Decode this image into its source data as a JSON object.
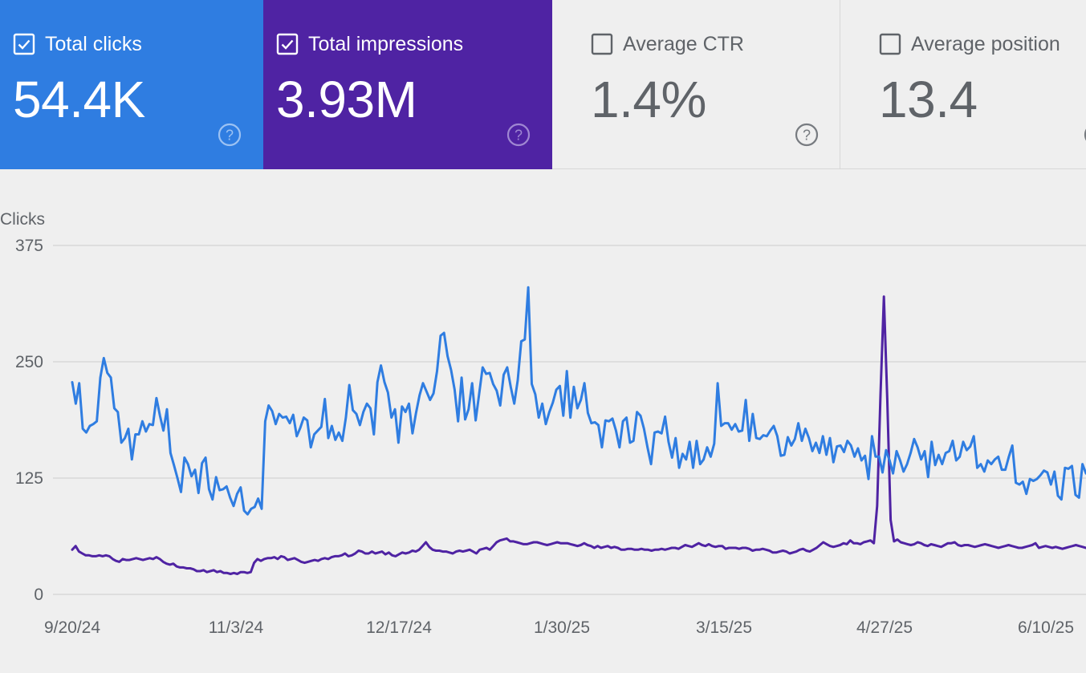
{
  "cards": [
    {
      "label": "Total clicks",
      "value": "54.4K",
      "checked": true,
      "color": "#2f7de1"
    },
    {
      "label": "Total impressions",
      "value": "3.93M",
      "checked": true,
      "color": "#4f23a3"
    },
    {
      "label": "Average CTR",
      "value": "1.4%",
      "checked": false,
      "color": "#efefef"
    },
    {
      "label": "Average position",
      "value": "13.4",
      "checked": false,
      "color": "#efefef"
    }
  ],
  "chart_data": {
    "type": "line",
    "ylabel": "Clicks",
    "ylim": [
      0,
      375
    ],
    "yticks": [
      "375",
      "250",
      "125",
      "0"
    ],
    "ytick_values": [
      375,
      250,
      125,
      0
    ],
    "xlabels": [
      "9/20/24",
      "11/3/24",
      "12/17/24",
      "1/30/25",
      "3/15/25",
      "4/27/25",
      "6/10/25"
    ],
    "x_start": "9/20/24",
    "x_end": "6/16/25",
    "grid": true,
    "series": [
      {
        "name": "Clicks",
        "color": "#2f7de1",
        "values": [
          228,
          205,
          227,
          178,
          174,
          181,
          183,
          186,
          233,
          254,
          238,
          233,
          200,
          196,
          163,
          168,
          178,
          145,
          172,
          172,
          186,
          175,
          183,
          182,
          211,
          192,
          176,
          199,
          152,
          139,
          125,
          110,
          147,
          140,
          127,
          134,
          109,
          141,
          147,
          113,
          102,
          126,
          112,
          113,
          116,
          104,
          95,
          108,
          115,
          90,
          86,
          92,
          94,
          103,
          92,
          186,
          203,
          197,
          183,
          194,
          190,
          191,
          184,
          193,
          170,
          179,
          190,
          187,
          158,
          172,
          176,
          180,
          210,
          168,
          181,
          166,
          174,
          165,
          190,
          225,
          198,
          194,
          182,
          196,
          205,
          200,
          172,
          228,
          246,
          228,
          217,
          190,
          199,
          163,
          202,
          196,
          205,
          173,
          195,
          214,
          227,
          218,
          209,
          216,
          240,
          278,
          281,
          256,
          241,
          220,
          186,
          233,
          188,
          199,
          227,
          187,
          215,
          244,
          237,
          238,
          226,
          219,
          203,
          236,
          244,
          223,
          205,
          230,
          272,
          274,
          330,
          226,
          215,
          190,
          205,
          183,
          196,
          206,
          220,
          224,
          192,
          240,
          190,
          223,
          200,
          209,
          227,
          195,
          184,
          185,
          182,
          158,
          187,
          186,
          189,
          176,
          158,
          186,
          190,
          163,
          165,
          196,
          192,
          178,
          158,
          140,
          174,
          175,
          173,
          191,
          164,
          147,
          168,
          136,
          151,
          145,
          164,
          136,
          165,
          140,
          145,
          158,
          148,
          162,
          227,
          181,
          184,
          184,
          177,
          183,
          175,
          176,
          209,
          165,
          194,
          168,
          167,
          171,
          170,
          176,
          181,
          170,
          149,
          150,
          169,
          160,
          167,
          184,
          165,
          178,
          168,
          154,
          163,
          152,
          170,
          150,
          168,
          142,
          159,
          160,
          153,
          165,
          160,
          148,
          157,
          144,
          149,
          124,
          170,
          148,
          148,
          131,
          155,
          144,
          130,
          154,
          144,
          132,
          140,
          152,
          167,
          158,
          145,
          154,
          126,
          164,
          139,
          150,
          140,
          152,
          154,
          165,
          144,
          148,
          164,
          155,
          159,
          170,
          136,
          140,
          132,
          144,
          140,
          145,
          148,
          134,
          134,
          148,
          160,
          120,
          118,
          121,
          108,
          124,
          122,
          124,
          128,
          133,
          131,
          118,
          132,
          106,
          102,
          136,
          135,
          138,
          107,
          104,
          140,
          130
        ]
      },
      {
        "name": "Impressions",
        "color": "#4f23a3",
        "values": [
          48,
          52,
          46,
          44,
          42,
          42,
          41,
          41,
          42,
          41,
          42,
          41,
          38,
          36,
          35,
          38,
          37,
          37,
          38,
          39,
          38,
          37,
          38,
          39,
          38,
          40,
          38,
          35,
          33,
          32,
          33,
          30,
          29,
          29,
          28,
          28,
          27,
          25,
          25,
          26,
          24,
          25,
          26,
          24,
          25,
          23,
          23,
          22,
          23,
          22,
          24,
          24,
          23,
          24,
          34,
          38,
          36,
          38,
          39,
          39,
          40,
          38,
          41,
          40,
          37,
          38,
          39,
          37,
          35,
          34,
          35,
          36,
          37,
          36,
          38,
          39,
          38,
          40,
          41,
          41,
          42,
          44,
          41,
          42,
          44,
          47,
          46,
          44,
          44,
          46,
          44,
          45,
          46,
          43,
          45,
          42,
          41,
          43,
          45,
          44,
          45,
          47,
          46,
          48,
          52,
          56,
          51,
          48,
          47,
          47,
          46,
          46,
          45,
          44,
          46,
          47,
          46,
          47,
          48,
          46,
          44,
          48,
          49,
          50,
          48,
          52,
          56,
          58,
          59,
          60,
          57,
          57,
          56,
          55,
          54,
          54,
          55,
          56,
          56,
          55,
          54,
          53,
          54,
          55,
          56,
          55,
          55,
          55,
          54,
          53,
          52,
          53,
          55,
          53,
          52,
          50,
          52,
          50,
          51,
          52,
          50,
          51,
          50,
          48,
          48,
          49,
          49,
          48,
          48,
          49,
          48,
          48,
          47,
          48,
          48,
          49,
          48,
          49,
          50,
          50,
          49,
          51,
          53,
          52,
          51,
          53,
          55,
          53,
          52,
          54,
          52,
          51,
          52,
          52,
          49,
          50,
          50,
          50,
          49,
          50,
          50,
          49,
          47,
          48,
          48,
          49,
          48,
          47,
          45,
          45,
          46,
          47,
          46,
          44,
          45,
          46,
          48,
          49,
          47,
          46,
          48,
          50,
          53,
          56,
          54,
          52,
          51,
          52,
          53,
          55,
          54,
          58,
          55,
          55,
          54,
          56,
          57,
          58,
          55,
          95,
          215,
          320,
          210,
          80,
          57,
          59,
          56,
          55,
          54,
          53,
          54,
          56,
          55,
          53,
          52,
          54,
          53,
          52,
          51,
          53,
          55,
          55,
          56,
          53,
          52,
          53,
          53,
          52,
          51,
          52,
          53,
          54,
          53,
          52,
          51,
          50,
          51,
          52,
          53,
          52,
          51,
          50,
          50,
          51,
          52,
          53,
          55,
          50,
          51,
          52,
          51,
          50,
          51,
          50,
          49,
          50,
          51,
          52,
          53,
          52,
          51,
          50
        ]
      }
    ]
  }
}
